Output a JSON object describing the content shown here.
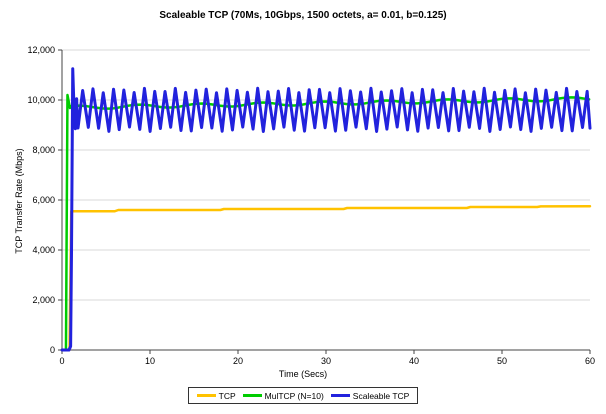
{
  "page": {
    "background": "#FFFFFF"
  },
  "chart_data": {
    "type": "line",
    "title": "Scaleable TCP (70Ms, 10Gbps, 1500 octets, a= 0.01, b=0.125)",
    "xlabel": "Time (Secs)",
    "ylabel": "TCP Transfer Rate (Mbps)",
    "xlim": [
      0,
      60
    ],
    "ylim": [
      0,
      12000
    ],
    "x_ticks": [
      0,
      10,
      20,
      30,
      40,
      50,
      60
    ],
    "x_tick_labels": [
      "0",
      "10",
      "20",
      "30",
      "40",
      "50",
      "60"
    ],
    "y_ticks": [
      0,
      2000,
      4000,
      6000,
      8000,
      10000,
      12000
    ],
    "y_tick_labels": [
      "0",
      "2,000",
      "4,000",
      "6,000",
      "8,000",
      "10,000",
      "12,000"
    ],
    "grid": "horizontal",
    "gridline_color": "#D9D9D9",
    "axis_color": "#444444",
    "legend_position": "bottom-center",
    "series": [
      {
        "name": "TCP",
        "color": "#FFC200",
        "line_width": 2.5,
        "shape": "startup-then-flat-steps",
        "points": [
          [
            0,
            0
          ],
          [
            0.85,
            0
          ],
          [
            1.05,
            5550
          ],
          [
            6,
            5550
          ],
          [
            6.4,
            5600
          ],
          [
            18,
            5600
          ],
          [
            18.4,
            5640
          ],
          [
            32,
            5640
          ],
          [
            32.4,
            5680
          ],
          [
            46,
            5680
          ],
          [
            46.4,
            5720
          ],
          [
            54,
            5720
          ],
          [
            54.4,
            5745
          ],
          [
            60,
            5750
          ]
        ]
      },
      {
        "name": "MulTCP (N=10)",
        "color": "#00CC00",
        "line_width": 2.5,
        "shape": "startup-spike-then-slow-rise",
        "startup_points": [
          [
            0,
            0
          ],
          [
            0.45,
            0
          ],
          [
            0.62,
            10200
          ],
          [
            0.9,
            9680
          ]
        ],
        "trend": {
          "from_x": 0.9,
          "to_x": 60,
          "base": 9700,
          "rise_total": 350,
          "wiggle_amplitude": 70,
          "wiggle_period_secs": 7
        }
      },
      {
        "name": "Scaleable TCP",
        "color": "#2222DD",
        "line_width": 3,
        "shape": "startup-spike-then-sawtooth",
        "startup_points": [
          [
            0,
            0
          ],
          [
            0.8,
            0
          ],
          [
            0.98,
            150
          ],
          [
            1.08,
            3900
          ],
          [
            1.22,
            11250
          ],
          [
            1.38,
            9500
          ],
          [
            1.52,
            8850
          ],
          [
            1.66,
            10050
          ],
          [
            1.82,
            8880
          ]
        ],
        "sawtooth": {
          "from_x": 1.82,
          "to_x": 60,
          "period_secs": 1.17,
          "peak": 10380,
          "trough": 8830,
          "peak_jitter": 90,
          "trough_jitter": 90,
          "rise_fraction": 0.45
        }
      }
    ]
  },
  "legend": {
    "items": [
      {
        "label": "TCP",
        "color": "#FFC200"
      },
      {
        "label": "MulTCP (N=10)",
        "color": "#00CC00"
      },
      {
        "label": "Scaleable TCP",
        "color": "#2222DD"
      }
    ]
  }
}
